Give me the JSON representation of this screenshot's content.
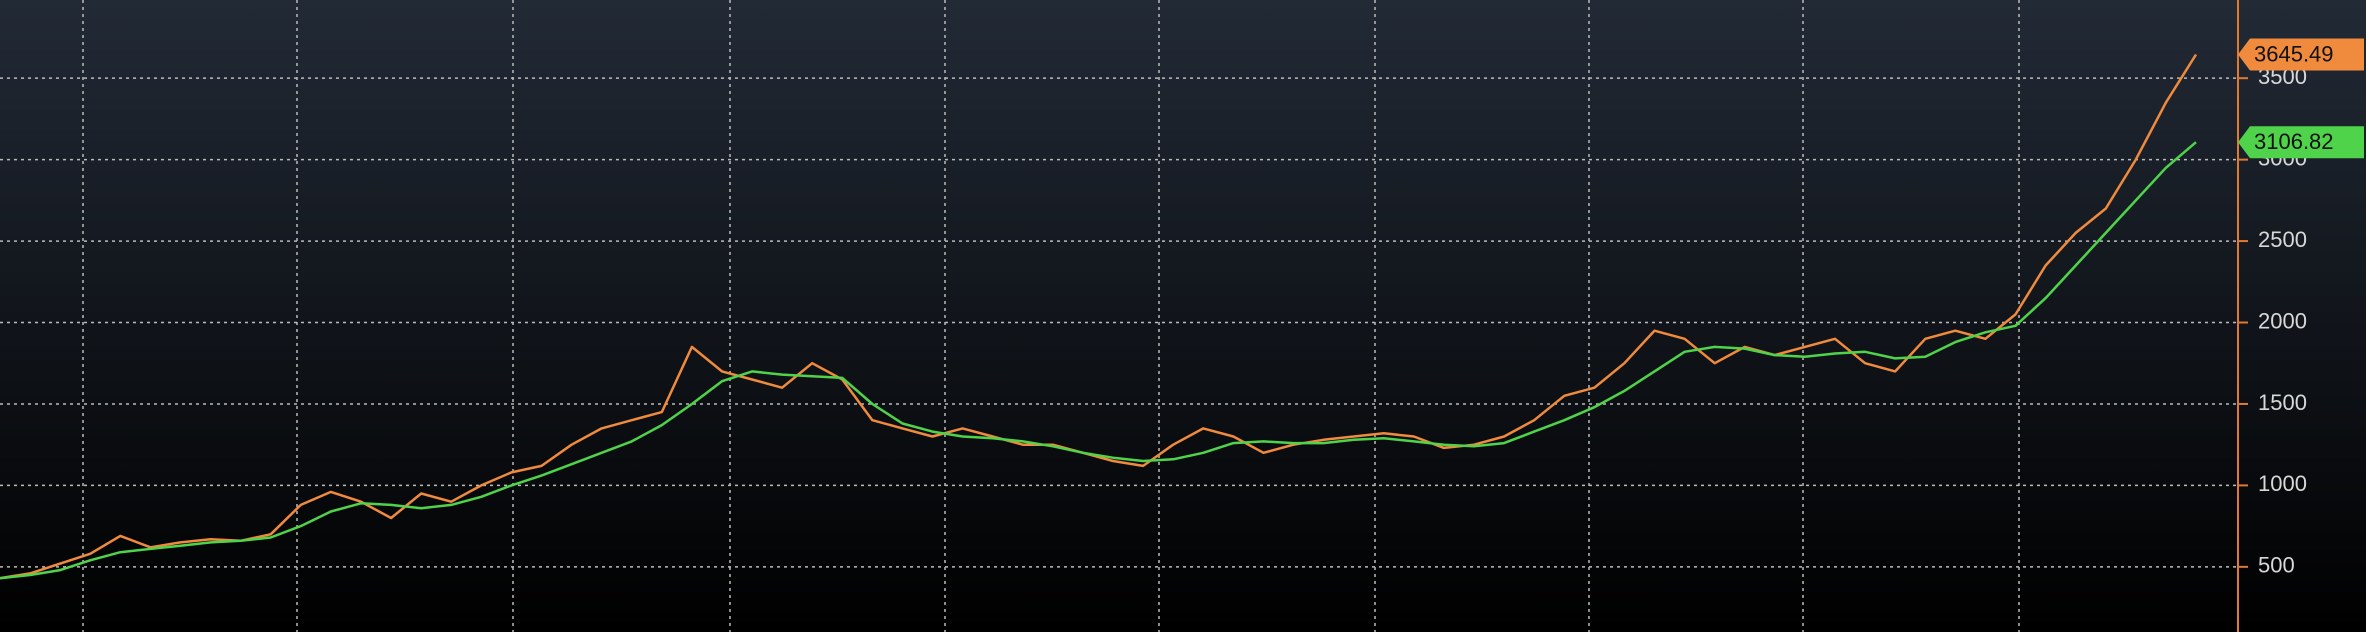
{
  "chart_data": {
    "type": "line",
    "categories": [
      null,
      null,
      null,
      null,
      null,
      null,
      null,
      null,
      null,
      null,
      null,
      null,
      null,
      null,
      null,
      null,
      null,
      null,
      null,
      null,
      null,
      null,
      null,
      null,
      null,
      null,
      null,
      null,
      null,
      null,
      null,
      null,
      null,
      null,
      null,
      null,
      null,
      null,
      null,
      null,
      null,
      null,
      null,
      null,
      null,
      null,
      null,
      null,
      null,
      null,
      null,
      null,
      null,
      null,
      null,
      null,
      null,
      null,
      null,
      null,
      null,
      null,
      null,
      null,
      null,
      null,
      null,
      null,
      null,
      null,
      null,
      null,
      null,
      null
    ],
    "series": [
      {
        "color": "#f08a3c",
        "values": [
          430,
          460,
          520,
          580,
          690,
          620,
          650,
          670,
          660,
          700,
          880,
          960,
          900,
          800,
          950,
          900,
          1000,
          1080,
          1120,
          1250,
          1350,
          1400,
          1450,
          1850,
          1700,
          1650,
          1600,
          1750,
          1650,
          1400,
          1350,
          1300,
          1350,
          1300,
          1250,
          1250,
          1200,
          1150,
          1120,
          1250,
          1350,
          1300,
          1200,
          1250,
          1280,
          1300,
          1320,
          1300,
          1230,
          1250,
          1300,
          1400,
          1550,
          1600,
          1750,
          1950,
          1900,
          1750,
          1850,
          1800,
          1850,
          1900,
          1750,
          1700,
          1900,
          1950,
          1900,
          2050,
          2350,
          2550,
          2700,
          3000,
          3350,
          3645.49
        ]
      },
      {
        "color": "#4fd34a",
        "values": [
          430,
          450,
          480,
          540,
          590,
          610,
          630,
          650,
          660,
          680,
          750,
          840,
          890,
          880,
          860,
          880,
          930,
          1000,
          1060,
          1130,
          1200,
          1270,
          1370,
          1500,
          1640,
          1700,
          1680,
          1670,
          1660,
          1500,
          1380,
          1330,
          1300,
          1290,
          1270,
          1240,
          1200,
          1170,
          1150,
          1160,
          1200,
          1260,
          1270,
          1260,
          1260,
          1280,
          1290,
          1270,
          1250,
          1240,
          1260,
          1330,
          1400,
          1480,
          1580,
          1700,
          1820,
          1850,
          1840,
          1800,
          1790,
          1810,
          1820,
          1780,
          1790,
          1880,
          1940,
          1980,
          2150,
          2350,
          2550,
          2750,
          2950,
          3106.82
        ]
      }
    ],
    "ylim": [
      100,
      3980
    ],
    "yticks": [
      500,
      1000,
      1500,
      2000,
      2500,
      3000,
      3500
    ],
    "grid": true
  }
}
